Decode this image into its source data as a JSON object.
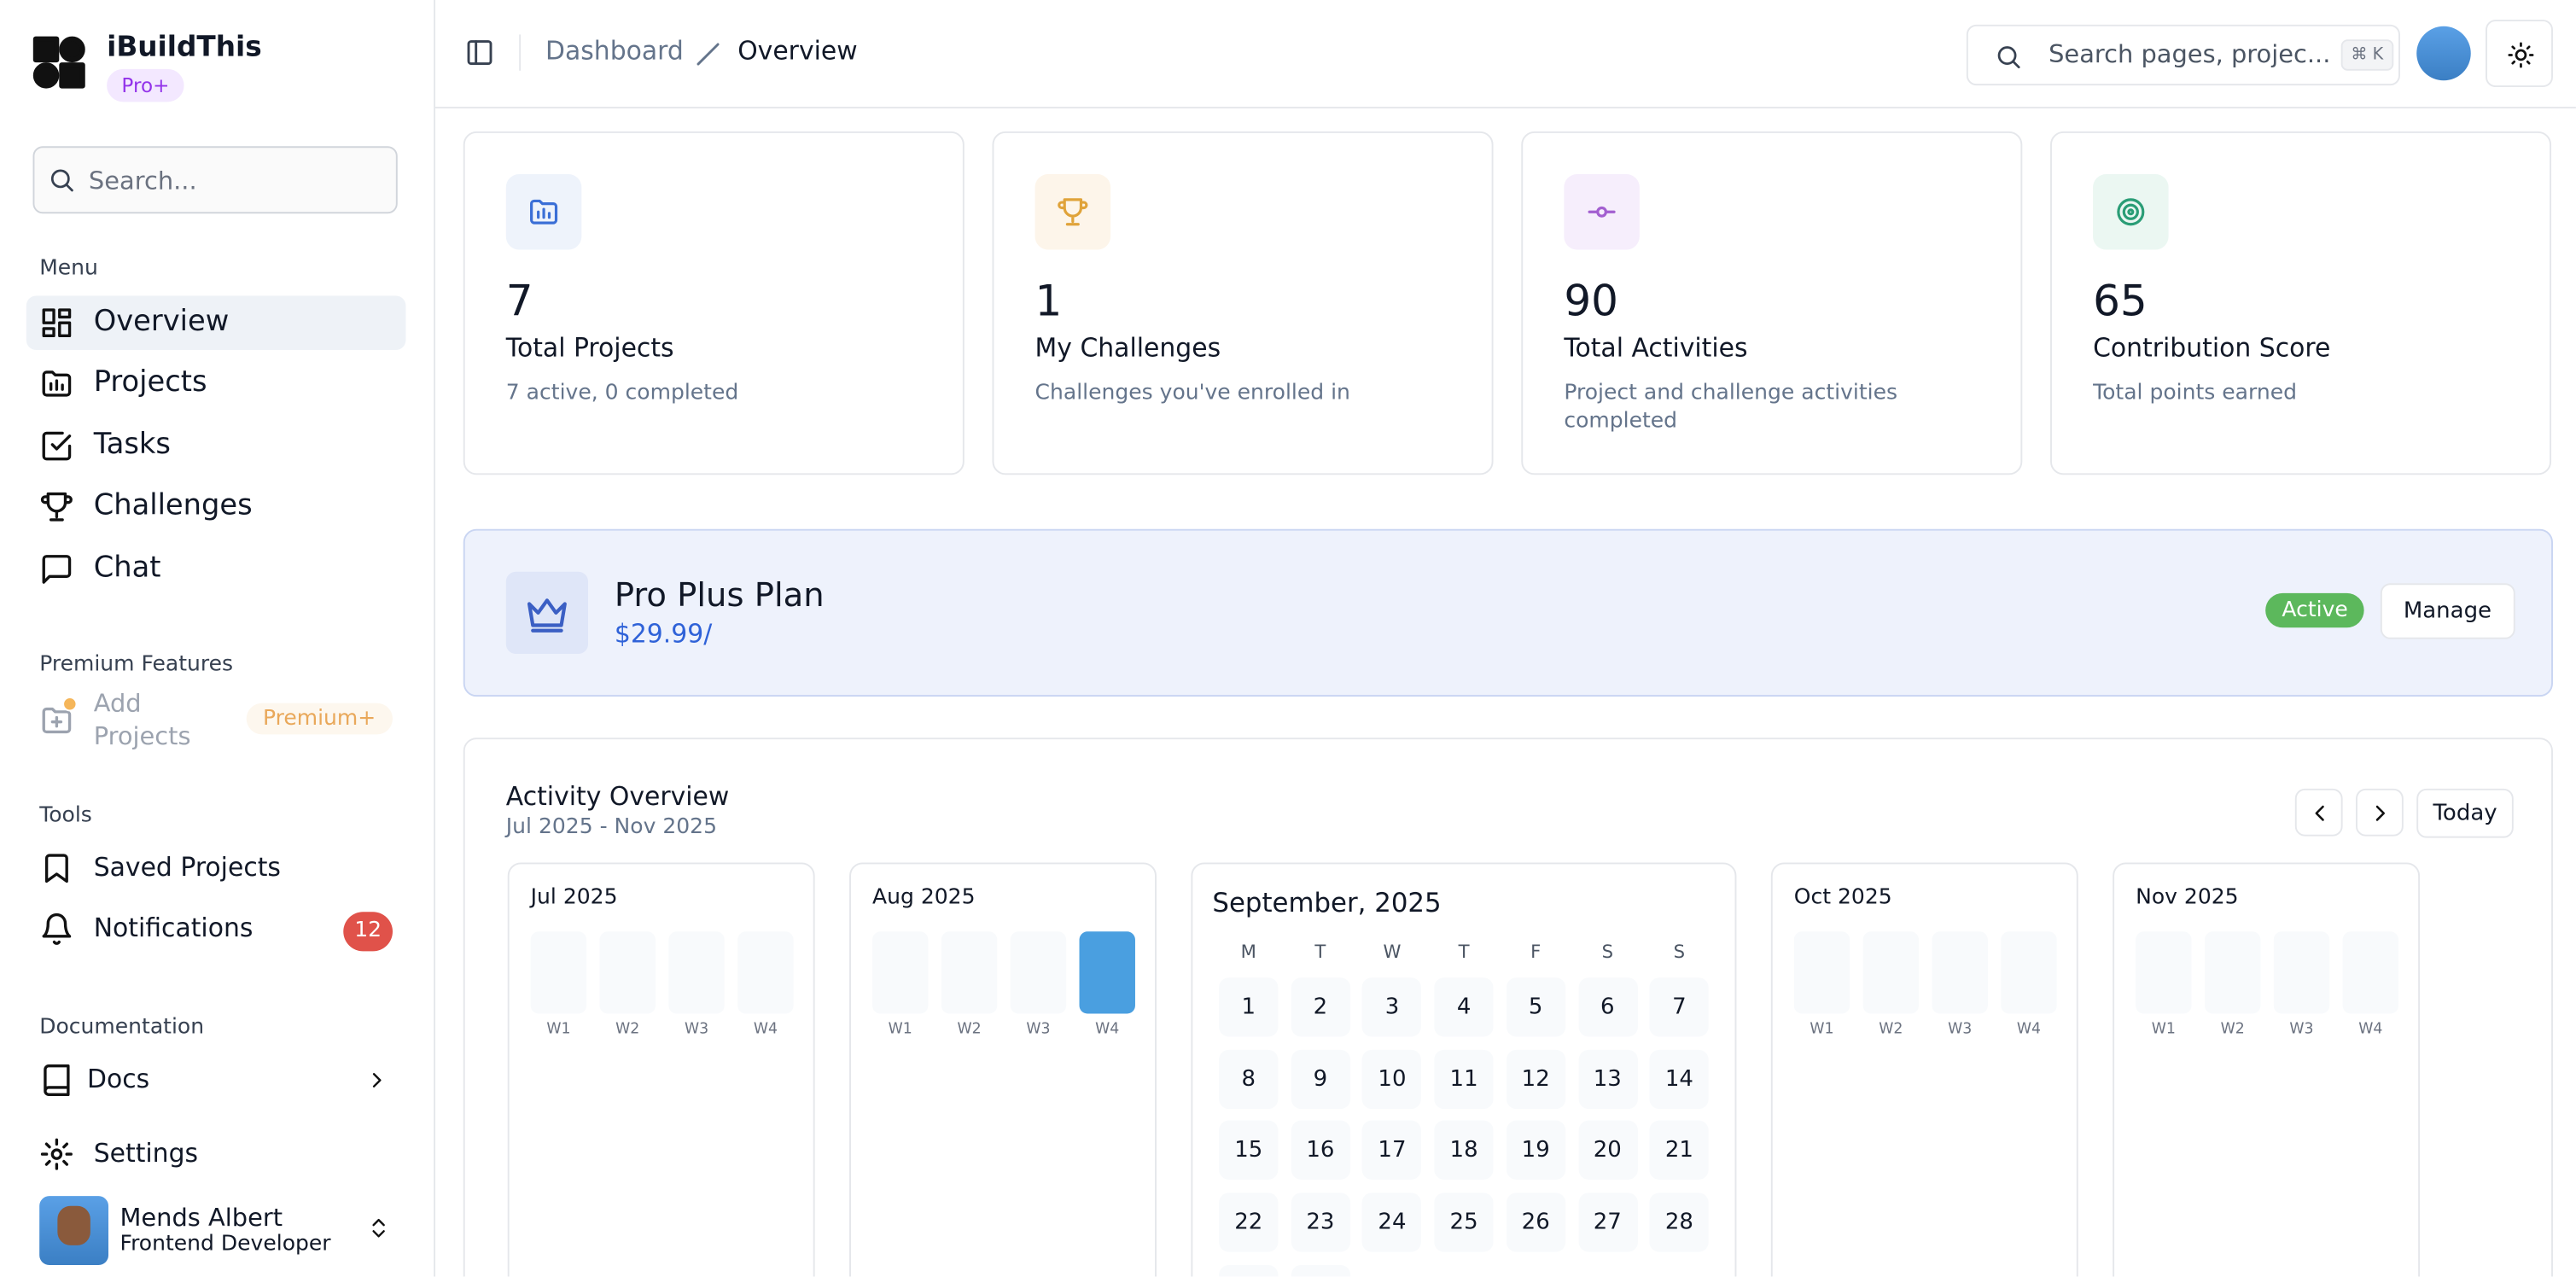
{
  "sidebar": {
    "brand": "iBuildThis",
    "badge": "Pro+",
    "search_placeholder": "Search...",
    "menu_heading": "Menu",
    "menu": [
      "Overview",
      "Projects",
      "Tasks",
      "Challenges",
      "Chat"
    ],
    "premium_heading": "Premium Features",
    "premium_item": "Add Projects",
    "premium_badge": "Premium+",
    "tools_heading": "Tools",
    "tools": [
      "Saved Projects",
      "Notifications"
    ],
    "notifications_count": 12,
    "docs_heading": "Documentation",
    "docs": "Docs",
    "settings": "Settings",
    "user": {
      "name": "Mends Albert",
      "role": "Frontend Developer"
    }
  },
  "header": {
    "breadcrumb": [
      "Dashboard",
      "Overview"
    ],
    "search_placeholder": "Search pages, projec...",
    "shortcut": "⌘ K"
  },
  "stats": [
    {
      "value": 7,
      "label": "Total Projects",
      "note": "7 active, 0 completed",
      "color": "#3b6fd6",
      "bg": "#eef3fb"
    },
    {
      "value": 1,
      "label": "My Challenges",
      "note": "Challenges you've enrolled in",
      "color": "#e0a33a",
      "bg": "#fdf5ea"
    },
    {
      "value": 90,
      "label": "Total Activities",
      "note": "Project and challenge activities completed",
      "color": "#a35fd0",
      "bg": "#f6eefc"
    },
    {
      "value": 65,
      "label": "Contribution Score",
      "note": "Total points earned",
      "color": "#2a9d76",
      "bg": "#ebf7f2"
    }
  ],
  "plan": {
    "name": "Pro Plus Plan",
    "price": "$29.99/",
    "status": "Active",
    "button": "Manage"
  },
  "activity": {
    "title": "Activity Overview",
    "range": "Jul 2025 - Nov 2025",
    "today": "Today",
    "months": [
      {
        "name": "Jul 2025",
        "weeks": [
          "W1",
          "W2",
          "W3",
          "W4"
        ],
        "active": [
          false,
          false,
          false,
          false
        ]
      },
      {
        "name": "Aug 2025",
        "weeks": [
          "W1",
          "W2",
          "W3",
          "W4"
        ],
        "active": [
          false,
          false,
          false,
          true
        ]
      },
      {
        "name": "Oct 2025",
        "weeks": [
          "W1",
          "W2",
          "W3",
          "W4"
        ],
        "active": [
          false,
          false,
          false,
          false
        ]
      },
      {
        "name": "Nov 2025",
        "weeks": [
          "W1",
          "W2",
          "W3",
          "W4"
        ],
        "active": [
          false,
          false,
          false,
          false
        ]
      }
    ],
    "current": {
      "name": "September, 2025",
      "weekdays": [
        "M",
        "T",
        "W",
        "T",
        "F",
        "S",
        "S"
      ],
      "days": [
        1,
        2,
        3,
        4,
        5,
        6,
        7,
        8,
        9,
        10,
        11,
        12,
        13,
        14,
        15,
        16,
        17,
        18,
        19,
        20,
        21,
        22,
        23,
        24,
        25,
        26,
        27,
        28
      ]
    }
  }
}
